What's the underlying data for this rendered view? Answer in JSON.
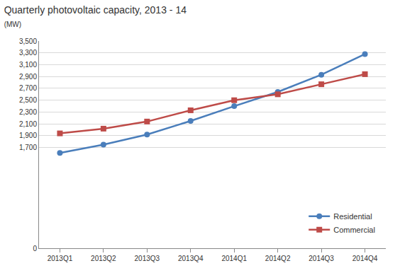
{
  "chart_data": {
    "type": "line",
    "title": "Quarterly photovoltaic capacity, 2013 - 14",
    "subtitle": "(MW)",
    "categories": [
      "2013Q1",
      "2013Q2",
      "2013Q3",
      "2013Q4",
      "2014Q1",
      "2014Q2",
      "2014Q3",
      "2014Q4"
    ],
    "series": [
      {
        "name": "Residential",
        "color": "#4a7ebb",
        "marker": "circle",
        "values": [
          1610,
          1750,
          1920,
          2150,
          2400,
          2640,
          2930,
          3280
        ]
      },
      {
        "name": "Commercial",
        "color": "#be4b48",
        "marker": "square",
        "values": [
          1940,
          2020,
          2140,
          2330,
          2500,
          2600,
          2770,
          2940
        ]
      }
    ],
    "ylim": [
      0,
      3500
    ],
    "yticks": [
      0,
      {
        "value": 1700,
        "label": "1,700"
      },
      {
        "value": 1900,
        "label": "1,900"
      },
      {
        "value": 2100,
        "label": "2,100"
      },
      {
        "value": 2300,
        "label": "2,300"
      },
      {
        "value": 2500,
        "label": "2,500"
      },
      {
        "value": 2700,
        "label": "2,700"
      },
      {
        "value": 2900,
        "label": "2,900"
      },
      {
        "value": 3100,
        "label": "3,100"
      },
      {
        "value": 3300,
        "label": "3,300"
      },
      {
        "value": 3500,
        "label": "3,500"
      }
    ],
    "grid": true,
    "legend": "lower right"
  }
}
